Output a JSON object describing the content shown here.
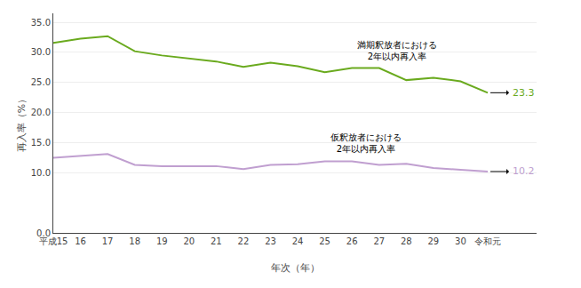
{
  "chart_data": {
    "type": "line",
    "x_label": "年次（年）",
    "y_label": "再入率（%）",
    "categories": [
      "平成15",
      "16",
      "17",
      "18",
      "19",
      "20",
      "21",
      "22",
      "23",
      "24",
      "25",
      "26",
      "27",
      "28",
      "29",
      "30",
      "令和元"
    ],
    "series": [
      {
        "name": "満期釈放者における\n2年以内再入率",
        "color": "#6aaa1e",
        "values": [
          31.6,
          32.3,
          32.7,
          30.2,
          29.5,
          29.0,
          28.5,
          27.6,
          28.3,
          27.7,
          26.7,
          27.4,
          27.4,
          25.4,
          25.8,
          25.2,
          23.3
        ]
      },
      {
        "name": "仮釈放者における\n2年以内再入率",
        "color": "#c09fd0",
        "values": [
          12.5,
          12.8,
          13.1,
          11.3,
          11.1,
          11.1,
          11.1,
          10.6,
          11.3,
          11.4,
          11.9,
          11.9,
          11.3,
          11.5,
          10.8,
          10.5,
          10.2
        ]
      }
    ],
    "annotations": [
      {
        "text": "23.3",
        "x": "令和元",
        "y": 23.3,
        "color": "#6aaa1e"
      },
      {
        "text": "10.2",
        "x": "令和元",
        "y": 10.2,
        "color": "#c09fd0"
      }
    ],
    "ylim": [
      0,
      36.5
    ],
    "yticks": [
      {
        "value": 0.0,
        "label": "0.0"
      },
      {
        "value": 10.0,
        "label": "10.0"
      },
      {
        "value": 15.0,
        "label": "15.0"
      },
      {
        "value": 20.0,
        "label": "20.0"
      },
      {
        "value": 25.0,
        "label": "25.0"
      },
      {
        "value": 30.0,
        "label": "30.0"
      },
      {
        "value": 35.0,
        "label": "35.0"
      }
    ],
    "grid": true
  }
}
